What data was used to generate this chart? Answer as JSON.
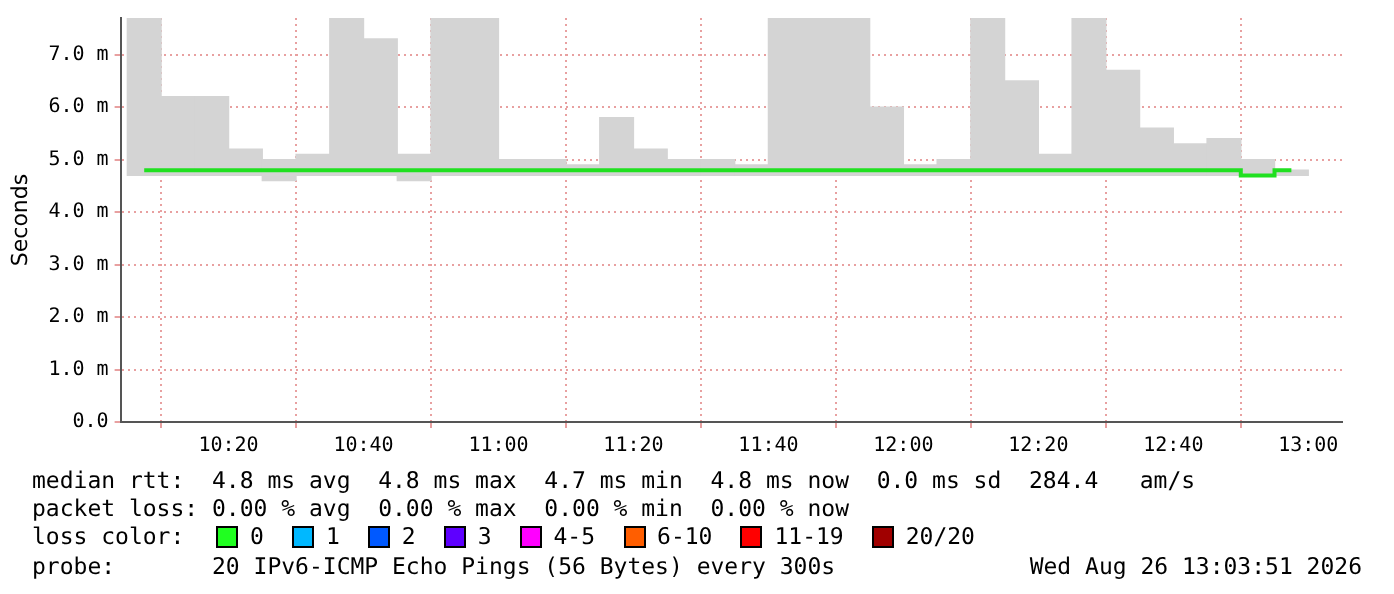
{
  "chart_data": {
    "type": "bar",
    "ylabel": "Seconds",
    "x": [
      10.125,
      10.2083,
      10.2917,
      10.375,
      10.4583,
      10.5417,
      10.625,
      10.7083,
      10.7917,
      10.875,
      10.9583,
      11.0417,
      11.125,
      11.2083,
      11.2917,
      11.375,
      11.4583,
      11.5417,
      11.625,
      11.7083,
      11.7917,
      11.875,
      11.9583,
      12.0417,
      12.125,
      12.2083,
      12.2917,
      12.375,
      12.4583,
      12.5417,
      12.625,
      12.7083,
      12.7917,
      12.875,
      12.9583
    ],
    "series": [
      {
        "color": "#d4d4d4",
        "base": [
          4.7,
          4.7,
          4.7,
          4.7,
          4.6,
          4.7,
          4.7,
          4.7,
          4.6,
          4.7,
          4.7,
          4.7,
          4.7,
          4.7,
          4.7,
          4.7,
          4.7,
          4.7,
          4.7,
          4.7,
          4.7,
          4.7,
          4.7,
          4.7,
          4.7,
          4.7,
          4.7,
          4.7,
          4.7,
          4.7,
          4.7,
          4.7,
          4.7,
          4.7,
          4.7
        ],
        "values": [
          3.0,
          1.5,
          1.5,
          0.5,
          0.4,
          0.4,
          3.0,
          2.6,
          0.5,
          3.0,
          3.0,
          0.3,
          0.3,
          0.2,
          1.1,
          0.5,
          0.3,
          0.3,
          0.2,
          3.0,
          3.0,
          3.0,
          1.3,
          0.2,
          0.3,
          3.0,
          1.8,
          0.4,
          3.0,
          2.0,
          0.9,
          0.6,
          0.7,
          0.3,
          0.1
        ]
      },
      {
        "type": "step",
        "color": "#20e020",
        "values": [
          4.8,
          4.8,
          4.8,
          4.8,
          4.8,
          4.8,
          4.8,
          4.8,
          4.8,
          4.8,
          4.8,
          4.8,
          4.8,
          4.8,
          4.8,
          4.8,
          4.8,
          4.8,
          4.8,
          4.8,
          4.8,
          4.8,
          4.8,
          4.8,
          4.8,
          4.8,
          4.8,
          4.8,
          4.8,
          4.8,
          4.8,
          4.8,
          4.8,
          4.7,
          4.8
        ]
      }
    ],
    "xlim": [
      10.0667,
      13.0833
    ],
    "xticks": [
      {
        "value": 10.3333,
        "label": "10:20"
      },
      {
        "value": 10.6667,
        "label": "10:40"
      },
      {
        "value": 11,
        "label": "11:00"
      },
      {
        "value": 11.3333,
        "label": "11:20"
      },
      {
        "value": 11.6667,
        "label": "11:40"
      },
      {
        "value": 12,
        "label": "12:00"
      },
      {
        "value": 12.3333,
        "label": "12:20"
      },
      {
        "value": 12.6667,
        "label": "12:40"
      },
      {
        "value": 13,
        "label": "13:00"
      }
    ],
    "ylim": [
      0,
      7.7
    ],
    "yticks": [
      {
        "value": 0,
        "label": "0.0"
      },
      {
        "value": 1,
        "label": "1.0 m"
      },
      {
        "value": 2,
        "label": "2.0 m"
      },
      {
        "value": 3,
        "label": "3.0 m"
      },
      {
        "value": 4,
        "label": "4.0 m"
      },
      {
        "value": 5,
        "label": "5.0 m"
      },
      {
        "value": 6,
        "label": "6.0 m"
      },
      {
        "value": 7,
        "label": "7.0 m"
      }
    ],
    "grid": true,
    "annotations": [
      "median rtt:  4.8 ms avg  4.8 ms max  4.7 ms min  4.8 ms now  0.0 ms sd  284.4   am/s",
      "packet loss: 0.00 % avg  0.00 % max  0.00 % min  0.00 % now",
      "loss color:",
      "0",
      "1",
      "2",
      "3",
      "4-5",
      "6-10",
      "11-19",
      "20/20",
      "probe:       20 IPv6-ICMP Echo Pings (56 Bytes) every 300s",
      "Wed Aug 26 13:03:51 2026"
    ]
  }
}
